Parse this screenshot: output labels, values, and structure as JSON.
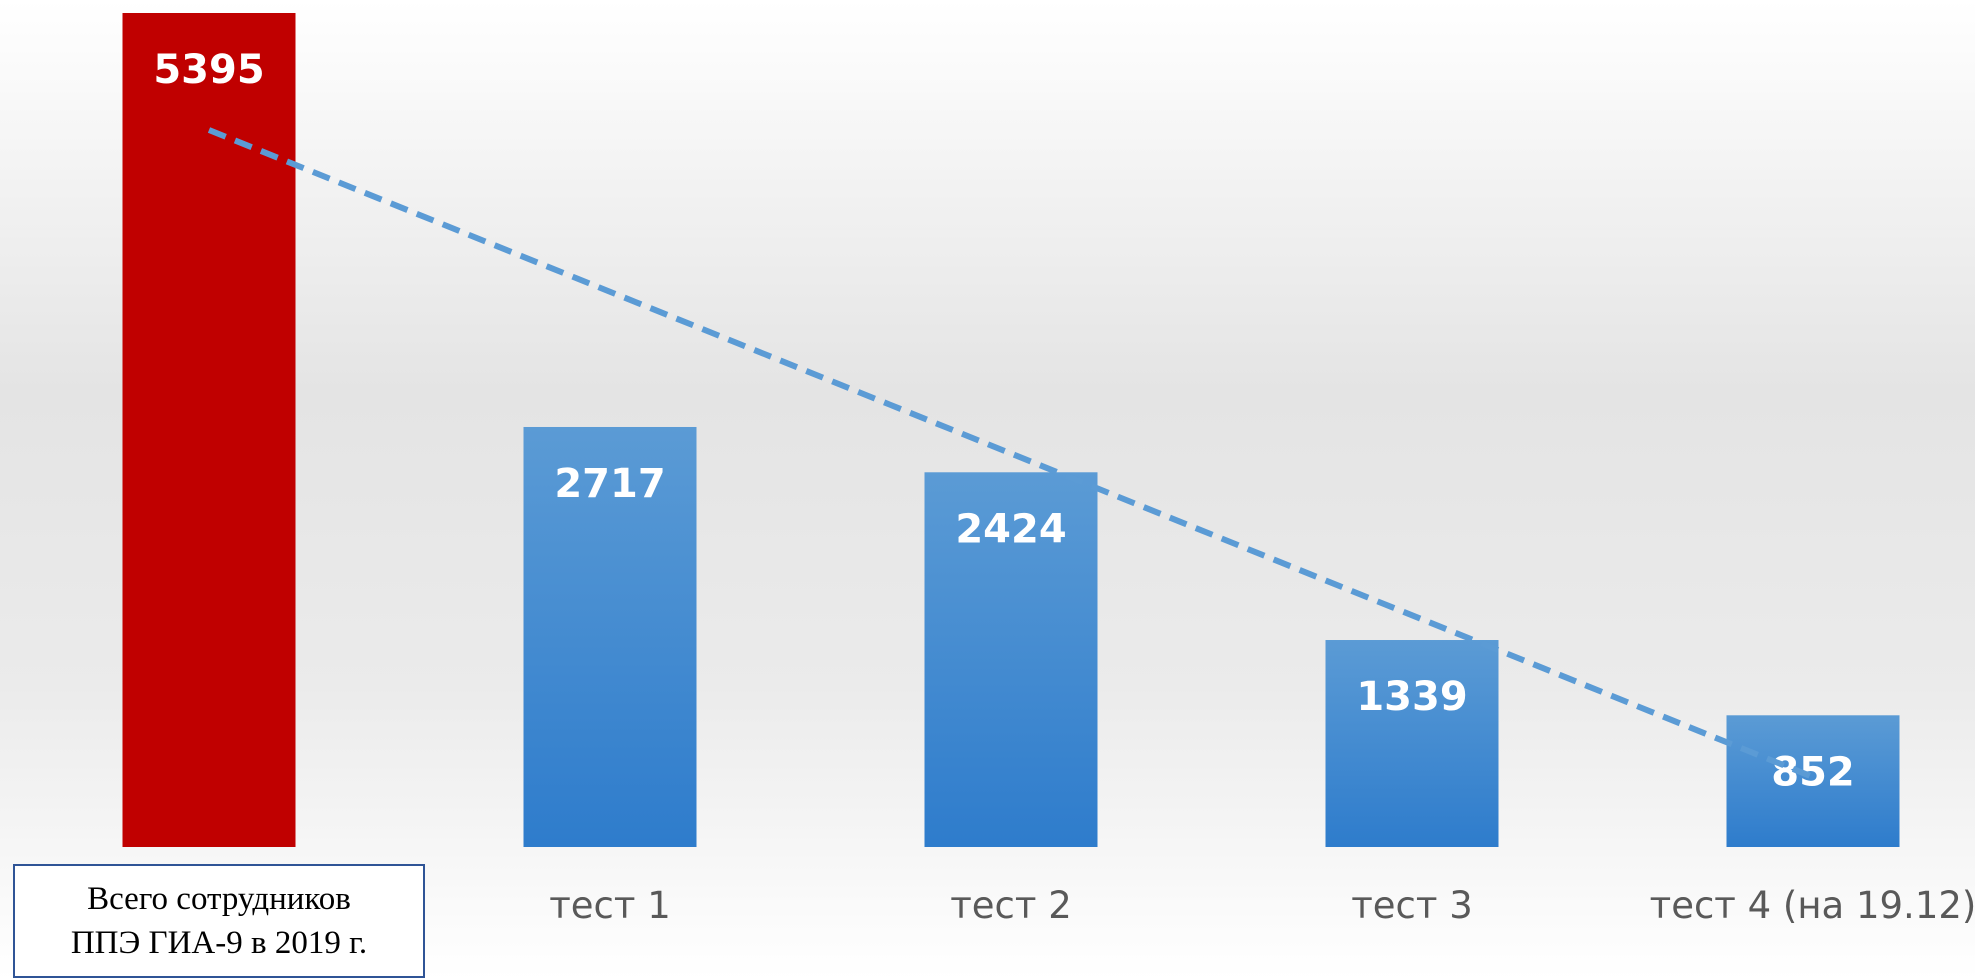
{
  "chart_data": {
    "type": "bar",
    "categories": [
      "Всего сотрудников ППЭ ГИА-9 в 2019 г.",
      "тест 1",
      "тест 2",
      "тест 3",
      "тест 4 (на 19.12)"
    ],
    "values": [
      5395,
      2717,
      2424,
      1339,
      852
    ],
    "colors": [
      "#c00000",
      "#3d87d0",
      "#3d87d0",
      "#3d87d0",
      "#3d87d0"
    ],
    "trendline": {
      "type": "linear",
      "color": "#5b9bd5",
      "dashed": true
    }
  }
}
